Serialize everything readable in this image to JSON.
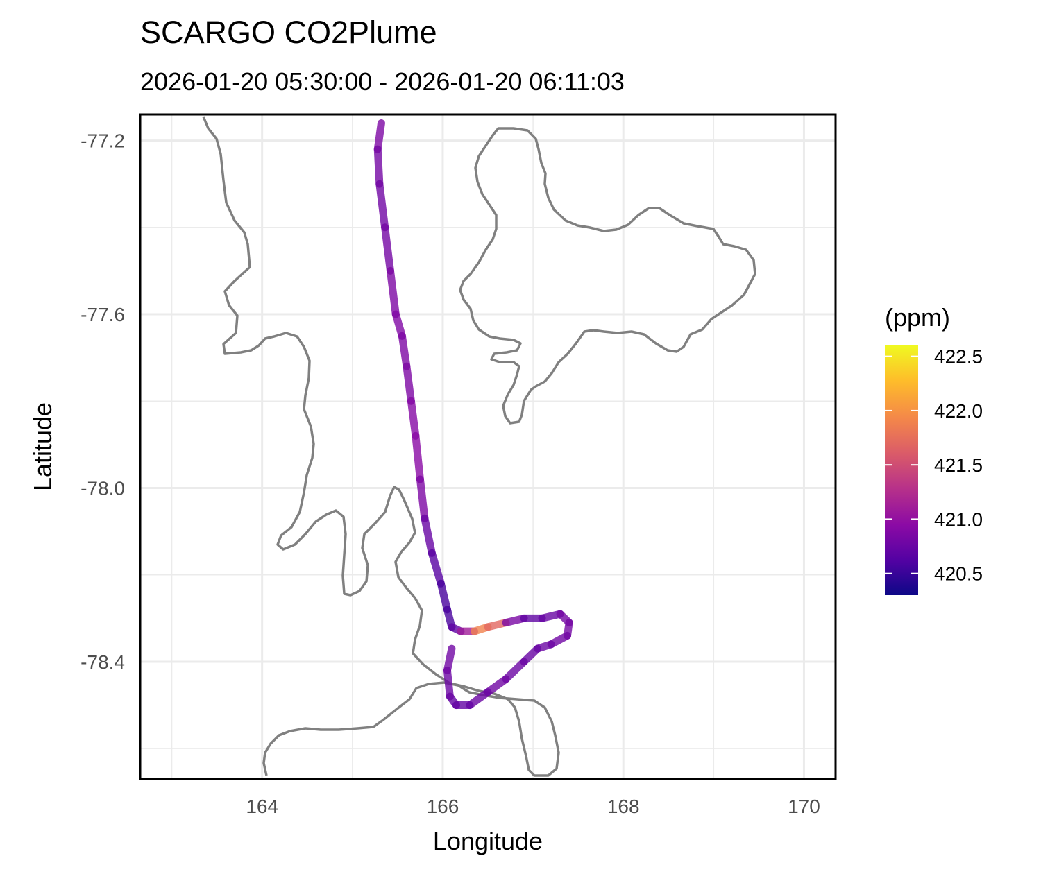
{
  "chart_data": {
    "type": "map-track",
    "title": "SCARGO CO2Plume",
    "subtitle": "2026-01-20 05:30:00 - 2026-01-20 06:11:03",
    "xlabel": "Longitude",
    "ylabel": "Latitude",
    "xlim": [
      162.65,
      170.35
    ],
    "ylim": [
      -78.67,
      -77.14
    ],
    "x_ticks": [
      164,
      166,
      168,
      170
    ],
    "x_tick_labels": [
      "164",
      "166",
      "168",
      "170"
    ],
    "y_ticks": [
      -77.2,
      -77.6,
      -78.0,
      -78.4
    ],
    "y_tick_labels": [
      "-77.2",
      "-77.6",
      "-78.0",
      "-78.4"
    ],
    "grid": true,
    "legend": {
      "title": "(ppm)",
      "position": "right",
      "palette": "plasma",
      "range": [
        420.3,
        422.6
      ],
      "ticks": [
        422.5,
        422.0,
        421.5,
        421.0,
        420.5
      ],
      "tick_labels": [
        "422.5",
        "422.0",
        "421.5",
        "421.0",
        "420.5"
      ],
      "colors": [
        "#0d0887",
        "#5302a3",
        "#8b0aa5",
        "#b83289",
        "#db5c68",
        "#f48849",
        "#febd2a",
        "#f0f921"
      ]
    },
    "track": {
      "lon": [
        165.32,
        165.28,
        165.3,
        165.36,
        165.42,
        165.48,
        165.55,
        165.6,
        165.65,
        165.7,
        165.75,
        165.8,
        165.88,
        165.98,
        166.05,
        166.1,
        166.2,
        166.35,
        166.5,
        166.7,
        166.9,
        167.1,
        167.3,
        167.4,
        167.38,
        167.2,
        167.05,
        166.9,
        166.7,
        166.5,
        166.3,
        166.15,
        166.08,
        166.05,
        166.1
      ],
      "lat": [
        -77.16,
        -77.22,
        -77.3,
        -77.4,
        -77.5,
        -77.6,
        -77.65,
        -77.72,
        -77.8,
        -77.88,
        -77.98,
        -78.07,
        -78.15,
        -78.22,
        -78.28,
        -78.32,
        -78.33,
        -78.33,
        -78.32,
        -78.31,
        -78.3,
        -78.3,
        -78.29,
        -78.31,
        -78.34,
        -78.36,
        -78.37,
        -78.4,
        -78.44,
        -78.47,
        -78.5,
        -78.5,
        -78.48,
        -78.42,
        -78.37
      ],
      "co2": [
        420.9,
        420.85,
        420.8,
        420.8,
        420.85,
        420.9,
        420.9,
        420.85,
        420.9,
        420.95,
        420.95,
        420.8,
        420.7,
        420.6,
        420.55,
        420.6,
        420.8,
        421.4,
        422.4,
        421.0,
        420.7,
        420.7,
        420.8,
        420.85,
        420.8,
        420.8,
        420.75,
        420.75,
        420.8,
        420.8,
        420.75,
        420.7,
        420.75,
        420.8,
        420.8
      ]
    }
  }
}
